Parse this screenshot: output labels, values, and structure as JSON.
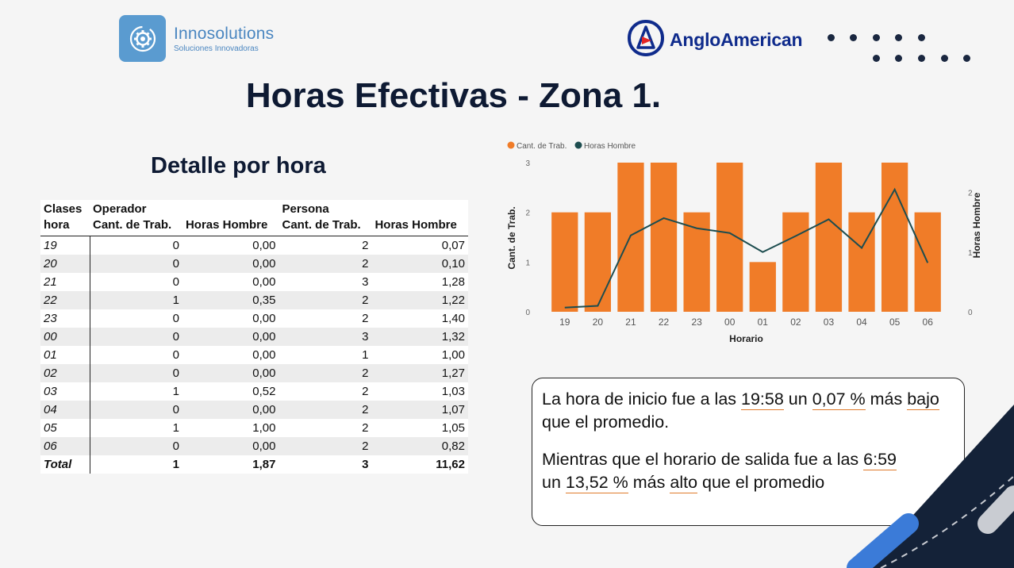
{
  "logos": {
    "innosolutions": {
      "name": "Innosolutions",
      "tagline": "Soluciones Innovadoras",
      "icon": "gear-cycle-icon"
    },
    "angloamerican": {
      "name": "AngloAmerican",
      "icon": "anglo-american-mark-icon"
    }
  },
  "title": "Horas Efectivas - Zona 1.",
  "subtitle": "Detalle por hora",
  "table": {
    "header": {
      "clases_line1": "Clases",
      "clases_line2": "hora",
      "operador": "Operador",
      "persona": "Persona",
      "cant_trab": "Cant. de Trab.",
      "horas_hombre": "Horas Hombre"
    },
    "rows": [
      {
        "hora": "19",
        "op_cant": "0",
        "op_hh": "0,00",
        "pe_cant": "2",
        "pe_hh": "0,07"
      },
      {
        "hora": "20",
        "op_cant": "0",
        "op_hh": "0,00",
        "pe_cant": "2",
        "pe_hh": "0,10"
      },
      {
        "hora": "21",
        "op_cant": "0",
        "op_hh": "0,00",
        "pe_cant": "3",
        "pe_hh": "1,28"
      },
      {
        "hora": "22",
        "op_cant": "1",
        "op_hh": "0,35",
        "pe_cant": "2",
        "pe_hh": "1,22"
      },
      {
        "hora": "23",
        "op_cant": "0",
        "op_hh": "0,00",
        "pe_cant": "2",
        "pe_hh": "1,40"
      },
      {
        "hora": "00",
        "op_cant": "0",
        "op_hh": "0,00",
        "pe_cant": "3",
        "pe_hh": "1,32"
      },
      {
        "hora": "01",
        "op_cant": "0",
        "op_hh": "0,00",
        "pe_cant": "1",
        "pe_hh": "1,00"
      },
      {
        "hora": "02",
        "op_cant": "0",
        "op_hh": "0,00",
        "pe_cant": "2",
        "pe_hh": "1,27"
      },
      {
        "hora": "03",
        "op_cant": "1",
        "op_hh": "0,52",
        "pe_cant": "2",
        "pe_hh": "1,03"
      },
      {
        "hora": "04",
        "op_cant": "0",
        "op_hh": "0,00",
        "pe_cant": "2",
        "pe_hh": "1,07"
      },
      {
        "hora": "05",
        "op_cant": "1",
        "op_hh": "1,00",
        "pe_cant": "2",
        "pe_hh": "1,05"
      },
      {
        "hora": "06",
        "op_cant": "0",
        "op_hh": "0,00",
        "pe_cant": "2",
        "pe_hh": "0,82"
      }
    ],
    "total": {
      "label": "Total",
      "op_cant": "1",
      "op_hh": "1,87",
      "pe_cant": "3",
      "pe_hh": "11,62"
    }
  },
  "chart_data": {
    "type": "bar",
    "title": "",
    "categories": [
      "19",
      "20",
      "21",
      "22",
      "23",
      "00",
      "01",
      "02",
      "03",
      "04",
      "05",
      "06"
    ],
    "series": [
      {
        "name": "Cant. de Trab.",
        "type": "bar",
        "axis": "left",
        "values": [
          2,
          2,
          3,
          3,
          2,
          3,
          1,
          2,
          3,
          2,
          3,
          2
        ]
      },
      {
        "name": "Horas Hombre",
        "type": "line",
        "axis": "right",
        "values": [
          0.07,
          0.1,
          1.28,
          1.57,
          1.4,
          1.32,
          1.0,
          1.27,
          1.55,
          1.07,
          2.05,
          0.82
        ]
      }
    ],
    "xlabel": "Horario",
    "ylabel": "Cant. de Trab.",
    "y2label": "Horas Hombre",
    "ylim": [
      0,
      3
    ],
    "y2lim": [
      0,
      2.5
    ],
    "yticks": [
      "0",
      "1",
      "2",
      "3"
    ],
    "y2ticks": [
      "0",
      "1",
      "2"
    ],
    "legend": "top-left",
    "colors": {
      "bar": "#f07c28",
      "line": "#1d4d4f"
    }
  },
  "note": {
    "p1_a": "La hora de inicio fue a las ",
    "p1_time": "19:58",
    "p1_b": " un ",
    "p1_pct": "0,07 %",
    "p1_c": " más ",
    "p1_word": "bajo",
    "p1_d": " que el promedio.",
    "p2_a": "Mientras que el horario de salida fue a las ",
    "p2_time": "6:59",
    "p2_b": "un ",
    "p2_pct": "13,52 %",
    "p2_c": " más ",
    "p2_word": "alto",
    "p2_d": " que el promedio"
  }
}
